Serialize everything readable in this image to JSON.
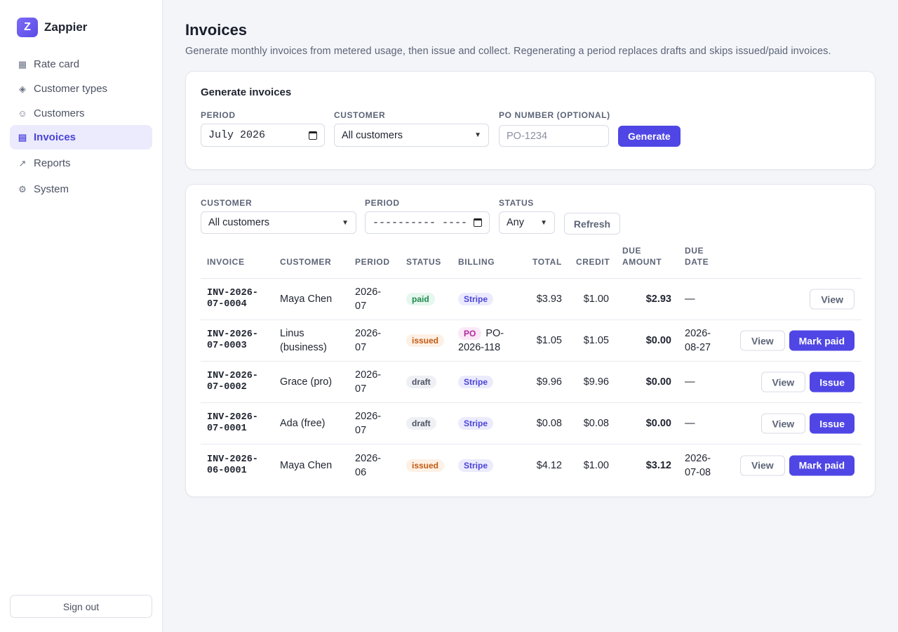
{
  "brand": {
    "logo_letter": "Z",
    "name": "Zappier"
  },
  "nav": {
    "items": [
      {
        "label": "Rate card",
        "icon": "grid-icon",
        "glyph": "▦"
      },
      {
        "label": "Customer types",
        "icon": "diamond-icon",
        "glyph": "◈"
      },
      {
        "label": "Customers",
        "icon": "smiley-icon",
        "glyph": "☺"
      },
      {
        "label": "Invoices",
        "icon": "list-icon",
        "glyph": "▤"
      },
      {
        "label": "Reports",
        "icon": "trend-icon",
        "glyph": "↗"
      },
      {
        "label": "System",
        "icon": "gear-icon",
        "glyph": "⚙"
      }
    ],
    "active": "Invoices",
    "signout_label": "Sign out"
  },
  "header": {
    "title": "Invoices",
    "description": "Generate monthly invoices from metered usage, then issue and collect. Regenerating a period replaces drafts and skips issued/paid invoices."
  },
  "generate": {
    "title": "Generate invoices",
    "period_label": "Period",
    "period_value": "July 2026",
    "customer_label": "Customer",
    "customer_value": "All customers",
    "po_label": "PO number (optional)",
    "po_placeholder": "PO-1234",
    "button_label": "Generate"
  },
  "filters": {
    "customer_label": "Customer",
    "customer_value": "All customers",
    "period_label": "Period",
    "period_value": "---------- ----",
    "status_label": "Status",
    "status_value": "Any",
    "refresh_label": "Refresh"
  },
  "table": {
    "columns": {
      "invoice": "Invoice",
      "customer": "Customer",
      "period": "Period",
      "status": "Status",
      "billing": "Billing",
      "total": "Total",
      "credit": "Credit",
      "due_amount": "Due amount",
      "due_date": "Due date"
    },
    "rows": [
      {
        "invoice": "INV-2026-07-0004",
        "customer": "Maya Chen",
        "period": "2026-07",
        "status": "paid",
        "billing": "Stripe",
        "billing_ref": "",
        "total": "$3.93",
        "credit": "$1.00",
        "due_amount": "$2.93",
        "due_date": "—",
        "view_label": "View",
        "action_label": ""
      },
      {
        "invoice": "INV-2026-07-0003",
        "customer": "Linus (business)",
        "period": "2026-07",
        "status": "issued",
        "billing": "PO",
        "billing_ref": "PO-2026-118",
        "total": "$1.05",
        "credit": "$1.05",
        "due_amount": "$0.00",
        "due_date": "2026-08-27",
        "view_label": "View",
        "action_label": "Mark paid"
      },
      {
        "invoice": "INV-2026-07-0002",
        "customer": "Grace (pro)",
        "period": "2026-07",
        "status": "draft",
        "billing": "Stripe",
        "billing_ref": "",
        "total": "$9.96",
        "credit": "$9.96",
        "due_amount": "$0.00",
        "due_date": "—",
        "view_label": "View",
        "action_label": "Issue"
      },
      {
        "invoice": "INV-2026-07-0001",
        "customer": "Ada (free)",
        "period": "2026-07",
        "status": "draft",
        "billing": "Stripe",
        "billing_ref": "",
        "total": "$0.08",
        "credit": "$0.08",
        "due_amount": "$0.00",
        "due_date": "—",
        "view_label": "View",
        "action_label": "Issue"
      },
      {
        "invoice": "INV-2026-06-0001",
        "customer": "Maya Chen",
        "period": "2026-06",
        "status": "issued",
        "billing": "Stripe",
        "billing_ref": "",
        "total": "$4.12",
        "credit": "$1.00",
        "due_amount": "$3.12",
        "due_date": "2026-07-08",
        "view_label": "View",
        "action_label": "Mark paid"
      }
    ]
  },
  "colors": {
    "accent": "#4f46e5",
    "paid": "#1f8a4c",
    "issued": "#c25a12",
    "draft": "#4b5263"
  }
}
